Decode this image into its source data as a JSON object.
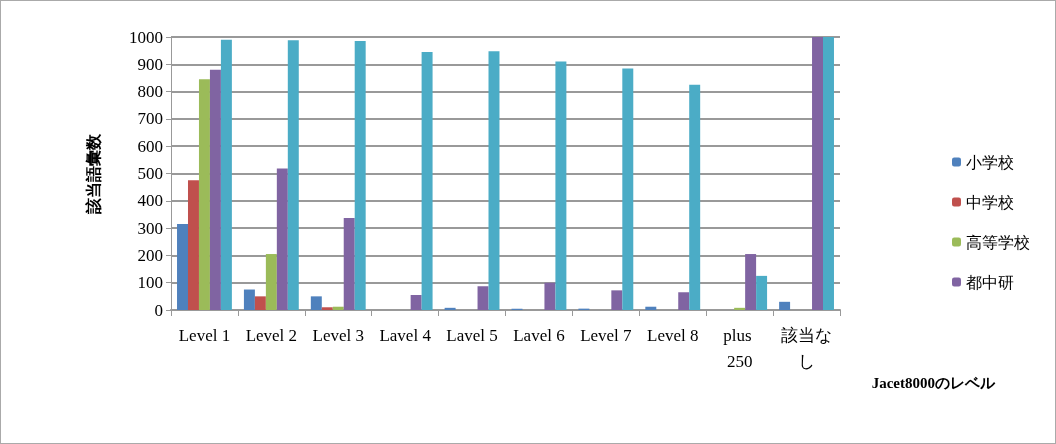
{
  "chart_data": {
    "type": "bar",
    "ylabel": "該当語彙数",
    "xlabel": "Jacet8000のレベル",
    "categories": [
      "Level 1",
      "Level 2",
      "Level 3",
      "Lavel 4",
      "Lavel 5",
      "Lavel 6",
      "Level 7",
      "Level 8",
      "plus 250",
      "該当なし"
    ],
    "series": [
      {
        "name": "小学校",
        "color": "#4f81bd",
        "values": [
          315,
          75,
          50,
          0,
          8,
          5,
          5,
          12,
          0,
          30
        ]
      },
      {
        "name": "中学校",
        "color": "#c0504d",
        "values": [
          475,
          50,
          10,
          0,
          0,
          0,
          0,
          0,
          0,
          0
        ]
      },
      {
        "name": "高等学校",
        "color": "#9bbb59",
        "values": [
          845,
          205,
          12,
          0,
          0,
          0,
          0,
          0,
          8,
          0
        ]
      },
      {
        "name": "都中研",
        "color": "#8064a2",
        "values": [
          880,
          518,
          337,
          55,
          87,
          100,
          72,
          65,
          205,
          1000
        ]
      },
      {
        "color": "#4bacc6",
        "values": [
          990,
          988,
          985,
          945,
          948,
          910,
          885,
          825,
          125,
          1000
        ]
      }
    ],
    "ylim": [
      0,
      1000
    ],
    "yticks": [
      0,
      100,
      200,
      300,
      400,
      500,
      600,
      700,
      800,
      900,
      1000
    ],
    "grid": "y",
    "legend": "right"
  }
}
